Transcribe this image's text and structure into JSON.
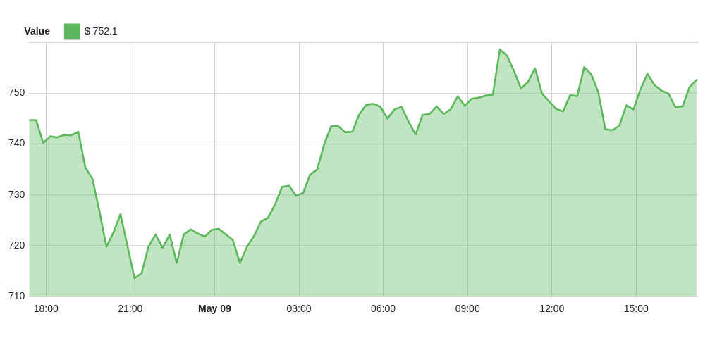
{
  "chart_data": {
    "type": "area",
    "legend_title": "Value",
    "legend": "top left",
    "grid": true,
    "marker": "none",
    "x": [
      "--05-08T17:24",
      "--05-08T17:39",
      "--05-08T17:54",
      "--05-08T18:09",
      "--05-08T18:24",
      "--05-08T18:39",
      "--05-08T18:54",
      "--05-08T19:09",
      "--05-08T19:24",
      "--05-08T19:39",
      "--05-08T19:54",
      "--05-08T20:09",
      "--05-08T20:24",
      "--05-08T20:39",
      "--05-08T20:54",
      "--05-08T21:09",
      "--05-08T21:24",
      "--05-08T21:39",
      "--05-08T21:54",
      "--05-08T22:09",
      "--05-08T22:24",
      "--05-08T22:39",
      "--05-08T22:54",
      "--05-08T23:09",
      "--05-08T23:24",
      "--05-08T23:39",
      "--05-08T23:54",
      "--05-09T00:09",
      "--05-09T00:24",
      "--05-09T00:39",
      "--05-09T00:54",
      "--05-09T01:09",
      "--05-09T01:24",
      "--05-09T01:39",
      "--05-09T01:54",
      "--05-09T02:09",
      "--05-09T02:24",
      "--05-09T02:39",
      "--05-09T02:54",
      "--05-09T03:09",
      "--05-09T03:24",
      "--05-09T03:39",
      "--05-09T03:54",
      "--05-09T04:09",
      "--05-09T04:24",
      "--05-09T04:39",
      "--05-09T04:54",
      "--05-09T05:09",
      "--05-09T05:24",
      "--05-09T05:39",
      "--05-09T05:54",
      "--05-09T06:09",
      "--05-09T06:24",
      "--05-09T06:39",
      "--05-09T06:54",
      "--05-09T07:09",
      "--05-09T07:24",
      "--05-09T07:39",
      "--05-09T07:54",
      "--05-09T08:09",
      "--05-09T08:24",
      "--05-09T08:39",
      "--05-09T08:54",
      "--05-09T09:09",
      "--05-09T09:24",
      "--05-09T09:39",
      "--05-09T09:54",
      "--05-09T10:09",
      "--05-09T10:24",
      "--05-09T10:39",
      "--05-09T10:54",
      "--05-09T11:09",
      "--05-09T11:24",
      "--05-09T11:39",
      "--05-09T11:54",
      "--05-09T12:09",
      "--05-09T12:24",
      "--05-09T12:39",
      "--05-09T12:54",
      "--05-09T13:09",
      "--05-09T13:24",
      "--05-09T13:39",
      "--05-09T13:54",
      "--05-09T14:09",
      "--05-09T14:24",
      "--05-09T14:39",
      "--05-09T14:54",
      "--05-09T15:09",
      "--05-09T15:24",
      "--05-09T15:39",
      "--05-09T15:54",
      "--05-09T16:09",
      "--05-09T16:24",
      "--05-09T16:39",
      "--05-09T16:54",
      "--05-09T17:09"
    ],
    "series": [
      {
        "name": "$ 752.1",
        "color": "#5cb85c",
        "values": [
          744.7,
          744.7,
          740.2,
          741.5,
          741.3,
          741.8,
          741.7,
          742.4,
          735.4,
          733.2,
          726.8,
          719.8,
          722.6,
          726.2,
          719.9,
          713.6,
          714.6,
          719.9,
          722.2,
          719.6,
          722.2,
          716.6,
          722.2,
          723.2,
          722.4,
          721.8,
          723.1,
          723.3,
          722.2,
          721.1,
          716.6,
          719.8,
          721.9,
          724.8,
          725.5,
          728.1,
          731.6,
          731.8,
          729.8,
          730.4,
          734.0,
          735.0,
          740.0,
          743.5,
          743.5,
          742.3,
          742.4,
          745.9,
          747.7,
          747.9,
          747.3,
          745.0,
          746.8,
          747.3,
          744.4,
          741.9,
          745.7,
          745.9,
          747.4,
          745.9,
          746.8,
          749.4,
          747.5,
          748.9,
          749.1,
          749.5,
          749.7,
          758.6,
          757.4,
          754.4,
          750.9,
          752.2,
          754.9,
          749.9,
          748.4,
          746.9,
          746.4,
          749.6,
          749.4,
          755.1,
          753.7,
          750.2,
          742.9,
          742.7,
          743.6,
          747.6,
          746.8,
          750.7,
          753.8,
          751.6,
          750.5,
          749.9,
          747.2,
          747.4,
          751.2,
          752.6
        ]
      }
    ],
    "xlim": [
      "--05-08T17:24",
      "--05-09T17:12"
    ],
    "xticks": [
      {
        "value": "--05-08T18:00",
        "label": "18:00"
      },
      {
        "value": "--05-08T21:00",
        "label": "21:00"
      },
      {
        "value": "--05-09T00:00",
        "label": "May 09"
      },
      {
        "value": "--05-09T03:00",
        "label": "03:00"
      },
      {
        "value": "--05-09T06:00",
        "label": "06:00"
      },
      {
        "value": "--05-09T09:00",
        "label": "09:00"
      },
      {
        "value": "--05-09T12:00",
        "label": "12:00"
      },
      {
        "value": "--05-09T15:00",
        "label": "15:00"
      }
    ],
    "ylim": [
      710,
      760
    ],
    "yticks": [
      710,
      720,
      730,
      740,
      750,
      {
        "value": 760,
        "label": null
      }
    ]
  }
}
